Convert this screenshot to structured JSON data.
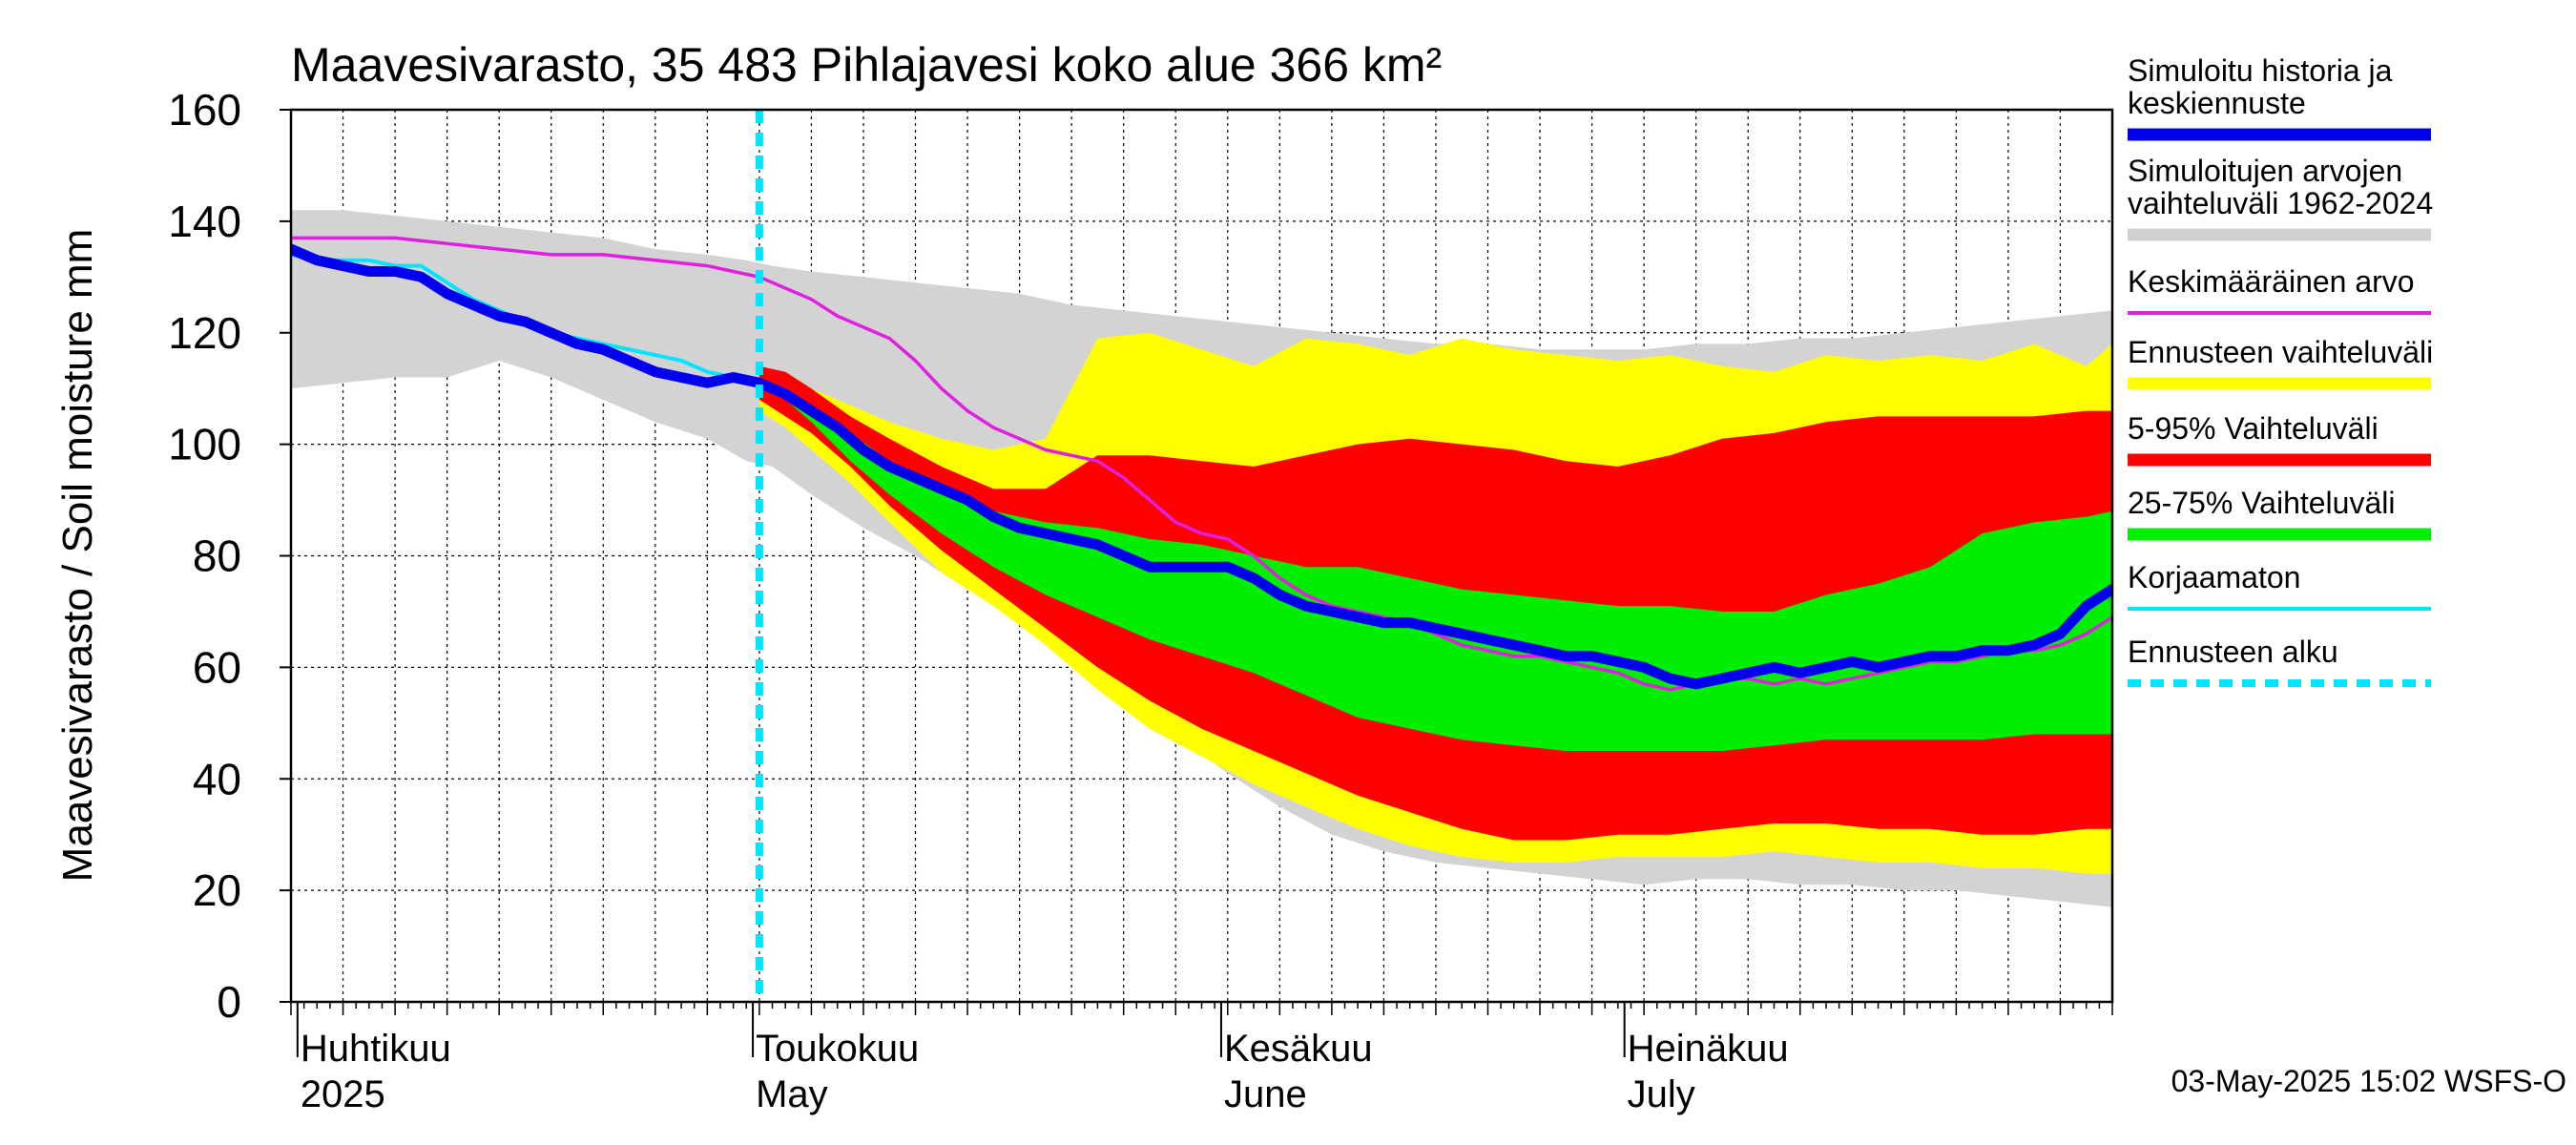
{
  "chart_data": {
    "type": "area",
    "title": "Maavesivarasto, 35 483 Pihlajavesi koko alue 366 km²",
    "ylabel": "Maavesivarasto / Soil moisture   mm",
    "ylim": [
      0,
      160
    ],
    "yticks": [
      "0",
      "20",
      "40",
      "60",
      "80",
      "100",
      "120",
      "140",
      "160"
    ],
    "x_unit": "day of year 2025",
    "xlim": [
      80,
      220
    ],
    "grid": true,
    "forecast_start": 116,
    "x_labels": [
      {
        "x": 80.5,
        "fi": "Huhtikuu",
        "en": "2025"
      },
      {
        "x": 115.5,
        "fi": "Toukokuu",
        "en": "May"
      },
      {
        "x": 151.5,
        "fi": "Kesäkuu",
        "en": "June"
      },
      {
        "x": 182.5,
        "fi": "Heinäkuu",
        "en": "July"
      }
    ],
    "timestamp": "03-May-2025 15:02 WSFS-O",
    "legend": [
      {
        "key": "history",
        "text": [
          "Simuloitu historia ja",
          "keskiennuste"
        ],
        "color": "#0000ee",
        "style": "thick"
      },
      {
        "key": "sim_range",
        "text": [
          "Simuloitujen arvojen",
          "vaihteluväli 1962-2024"
        ],
        "color": "#d0d0d0",
        "style": "thick"
      },
      {
        "key": "mean",
        "text": [
          "Keskimääräinen arvo"
        ],
        "color": "#e020e0",
        "style": "line"
      },
      {
        "key": "forecast_range",
        "text": [
          "Ennusteen vaihteluväli"
        ],
        "color": "#ffff00",
        "style": "thick"
      },
      {
        "key": "p5_95",
        "text": [
          "5-95% Vaihteluväli"
        ],
        "color": "#ff0000",
        "style": "thick"
      },
      {
        "key": "p25_75",
        "text": [
          "25-75% Vaihteluväli"
        ],
        "color": "#00ee00",
        "style": "thick"
      },
      {
        "key": "uncorrected",
        "text": [
          "Korjaamaton"
        ],
        "color": "#00e5ff",
        "style": "line"
      },
      {
        "key": "forecast_start",
        "text": [
          "Ennusteen alku"
        ],
        "color": "#00e5ff",
        "style": "dashed"
      }
    ],
    "series": {
      "sim_range": {
        "x": [
          80,
          84,
          88,
          92,
          96,
          100,
          104,
          108,
          112,
          115,
          117,
          120,
          124,
          128,
          132,
          136,
          140,
          144,
          148,
          152,
          156,
          160,
          164,
          168,
          172,
          176,
          180,
          184,
          188,
          192,
          196,
          200,
          204,
          208,
          212,
          216,
          220
        ],
        "upper": [
          142,
          142,
          141,
          140,
          139,
          138,
          137,
          135,
          134,
          133,
          132,
          131,
          130,
          129,
          128,
          127,
          125,
          124,
          123,
          122,
          121,
          120,
          119,
          118,
          118,
          117,
          117,
          117,
          118,
          118,
          119,
          119,
          120,
          121,
          122,
          123,
          124
        ],
        "lower": [
          110,
          111,
          112,
          112,
          115,
          112,
          108,
          104,
          101,
          97,
          96,
          91,
          85,
          80,
          74,
          68,
          62,
          55,
          48,
          41,
          35,
          30,
          27,
          25,
          24,
          23,
          22,
          21,
          22,
          22,
          21,
          21,
          20,
          20,
          19,
          18,
          17
        ]
      },
      "forecast_range": {
        "x": [
          116,
          118,
          120,
          123,
          126,
          130,
          134,
          138,
          142,
          146,
          150,
          154,
          158,
          162,
          166,
          170,
          174,
          178,
          182,
          186,
          190,
          194,
          198,
          202,
          206,
          210,
          214,
          218,
          220
        ],
        "upper": [
          112,
          113,
          110,
          107,
          104,
          101,
          99,
          101,
          119,
          120,
          117,
          114,
          119,
          118,
          116,
          119,
          117,
          116,
          115,
          116,
          114,
          113,
          116,
          115,
          116,
          115,
          118,
          114,
          118
        ],
        "lower": [
          106,
          103,
          99,
          93,
          86,
          77,
          71,
          64,
          56,
          49,
          44,
          39,
          35,
          31,
          28,
          26,
          25,
          25,
          26,
          26,
          26,
          27,
          26,
          25,
          25,
          24,
          24,
          23,
          23
        ]
      },
      "p5_95": {
        "x": [
          116,
          118,
          120,
          123,
          126,
          130,
          134,
          138,
          142,
          146,
          150,
          154,
          158,
          162,
          166,
          170,
          174,
          178,
          182,
          186,
          190,
          194,
          198,
          202,
          206,
          210,
          214,
          218,
          220
        ],
        "upper": [
          114,
          113,
          110,
          105,
          101,
          96,
          92,
          92,
          98,
          98,
          97,
          96,
          98,
          100,
          101,
          100,
          99,
          97,
          96,
          98,
          101,
          102,
          104,
          105,
          105,
          105,
          105,
          106,
          106
        ],
        "lower": [
          108,
          105,
          102,
          96,
          89,
          81,
          74,
          67,
          60,
          54,
          49,
          45,
          41,
          37,
          34,
          31,
          29,
          29,
          30,
          30,
          31,
          32,
          32,
          31,
          31,
          30,
          30,
          31,
          31
        ]
      },
      "p25_75": {
        "x": [
          116,
          118,
          120,
          123,
          126,
          130,
          134,
          138,
          142,
          146,
          150,
          154,
          158,
          162,
          166,
          170,
          174,
          178,
          182,
          186,
          190,
          194,
          198,
          202,
          206,
          210,
          214,
          218,
          220
        ],
        "upper": [
          111,
          110,
          107,
          102,
          97,
          93,
          88,
          86,
          85,
          83,
          82,
          80,
          78,
          78,
          76,
          74,
          73,
          72,
          71,
          71,
          70,
          70,
          73,
          75,
          78,
          84,
          86,
          87,
          88
        ],
        "lower": [
          110,
          108,
          104,
          97,
          91,
          84,
          78,
          73,
          69,
          65,
          62,
          59,
          55,
          51,
          49,
          47,
          46,
          45,
          45,
          45,
          45,
          46,
          47,
          47,
          47,
          47,
          48,
          48,
          48
        ]
      },
      "history": {
        "x": [
          80,
          82,
          84,
          86,
          88,
          90,
          92,
          94,
          96,
          98,
          100,
          102,
          104,
          106,
          108,
          110,
          112,
          114,
          116,
          118,
          120,
          122,
          124,
          126,
          128,
          130,
          132,
          134,
          136,
          138,
          140,
          142,
          144,
          146,
          148,
          150,
          152,
          154,
          156,
          158,
          160,
          162,
          164,
          166,
          168,
          170,
          172,
          174,
          176,
          178,
          180,
          182,
          184,
          186,
          188,
          190,
          192,
          194,
          196,
          198,
          200,
          202,
          204,
          206,
          208,
          210,
          212,
          214,
          216,
          218,
          220
        ],
        "y": [
          135,
          133,
          132,
          131,
          131,
          130,
          127,
          125,
          123,
          122,
          120,
          118,
          117,
          115,
          113,
          112,
          111,
          112,
          111,
          109,
          106,
          103,
          99,
          96,
          94,
          92,
          90,
          87,
          85,
          84,
          83,
          82,
          80,
          78,
          78,
          78,
          78,
          76,
          73,
          71,
          70,
          69,
          68,
          68,
          67,
          66,
          65,
          64,
          63,
          62,
          62,
          61,
          60,
          58,
          57,
          58,
          59,
          60,
          59,
          60,
          61,
          60,
          61,
          62,
          62,
          63,
          63,
          64,
          66,
          71,
          74
        ]
      },
      "uncorrected": {
        "x": [
          80,
          82,
          84,
          86,
          88,
          90,
          92,
          94,
          96,
          98,
          100,
          102,
          104,
          106,
          108,
          110,
          112,
          114,
          116
        ],
        "y": [
          134,
          133,
          133,
          133,
          132,
          132,
          129,
          126,
          124,
          122,
          120,
          119,
          118,
          117,
          116,
          115,
          113,
          112,
          111
        ]
      },
      "mean": {
        "x": [
          80,
          84,
          88,
          92,
          96,
          100,
          104,
          108,
          112,
          114,
          116,
          118,
          120,
          122,
          124,
          126,
          128,
          130,
          132,
          134,
          136,
          138,
          140,
          142,
          144,
          146,
          148,
          150,
          152,
          154,
          156,
          158,
          160,
          162,
          164,
          166,
          168,
          170,
          172,
          174,
          176,
          178,
          180,
          182,
          184,
          186,
          188,
          190,
          192,
          194,
          196,
          198,
          200,
          202,
          204,
          206,
          208,
          210,
          212,
          214,
          216,
          218,
          220
        ],
        "y": [
          137,
          137,
          137,
          136,
          135,
          134,
          134,
          133,
          132,
          131,
          130,
          128,
          126,
          123,
          121,
          119,
          115,
          110,
          106,
          103,
          101,
          99,
          98,
          97,
          94,
          90,
          86,
          84,
          83,
          80,
          76,
          73,
          71,
          70,
          69,
          68,
          66,
          64,
          63,
          62,
          62,
          61,
          60,
          59,
          57,
          56,
          57,
          58,
          58,
          57,
          58,
          57,
          58,
          59,
          60,
          61,
          61,
          62,
          63,
          63,
          64,
          66,
          69
        ]
      }
    }
  }
}
